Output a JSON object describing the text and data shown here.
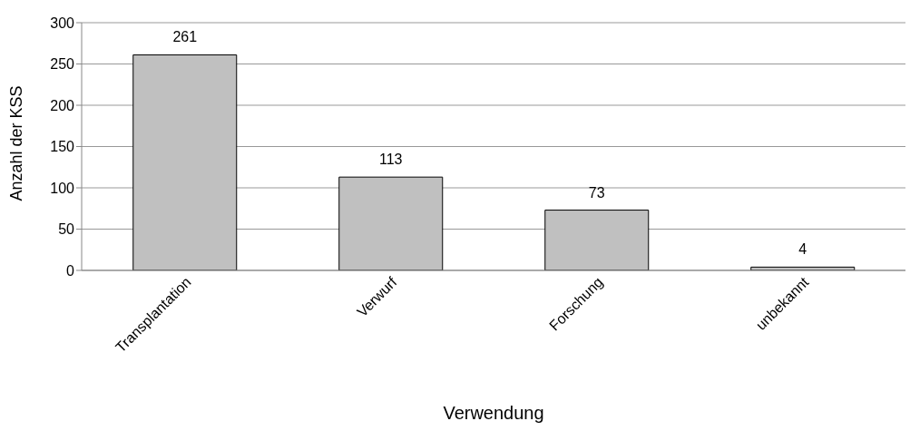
{
  "chart_data": {
    "type": "bar",
    "xlabel": "Verwendung",
    "ylabel": "Anzahl der KSS",
    "categories": [
      "Transplantation",
      "Verwurf",
      "Forschung",
      "unbekannt"
    ],
    "values": [
      261,
      113,
      73,
      4
    ],
    "color": "#c0c0c0",
    "ylim": [
      0,
      300
    ],
    "yticks": [
      0,
      50,
      100,
      150,
      200,
      250,
      300
    ],
    "grid": "y",
    "data_labels": true,
    "legend": false
  }
}
